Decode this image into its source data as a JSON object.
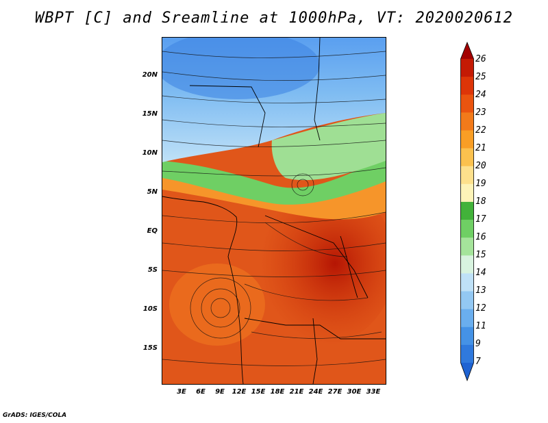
{
  "title": "WBPT [C] and Sreamline at 1000hPa, VT: 2020020612",
  "credit": "GrADS: IGES/COLA",
  "map": {
    "projection": "lat-lon",
    "lat_labels": [
      "20N",
      "15N",
      "10N",
      "5N",
      "EQ",
      "5S",
      "10S",
      "15S"
    ],
    "lon_labels": [
      "3E",
      "6E",
      "9E",
      "12E",
      "15E",
      "18E",
      "21E",
      "24E",
      "27E",
      "30E",
      "33E"
    ],
    "field": "Wet-bulb potential temperature",
    "overlay": "1000hPa streamlines"
  },
  "colorbar": {
    "levels": [
      "26",
      "25",
      "24",
      "23",
      "22",
      "21",
      "20",
      "19",
      "18",
      "17",
      "16",
      "15",
      "14",
      "13",
      "12",
      "11",
      "9",
      "7"
    ],
    "colors": [
      "#a30000",
      "#c41a04",
      "#dd3508",
      "#ea540f",
      "#f27a1a",
      "#f99e25",
      "#fbc14e",
      "#fde08c",
      "#fdf3b8",
      "#42b23a",
      "#6fcf64",
      "#a5e49b",
      "#d8f3df",
      "#bfe1f7",
      "#93c8f3",
      "#6aaeee",
      "#4592e6",
      "#2f79dd",
      "#1f63d2"
    ]
  }
}
